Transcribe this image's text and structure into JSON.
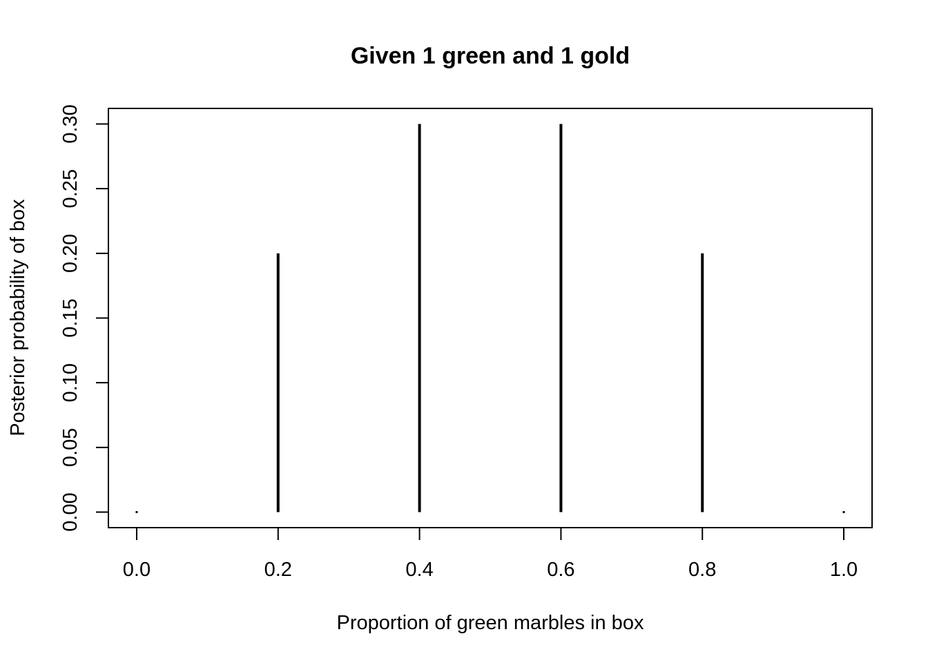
{
  "chart_data": {
    "type": "bar",
    "style": "spike",
    "title": "Given 1 green and 1 gold",
    "xlabel": "Proportion of green marbles in box",
    "ylabel": "Posterior probability of box",
    "x": [
      0.0,
      0.2,
      0.4,
      0.6,
      0.8,
      1.0
    ],
    "values": [
      0.0,
      0.2,
      0.3,
      0.3,
      0.2,
      0.0
    ],
    "xticks": [
      "0.0",
      "0.2",
      "0.4",
      "0.6",
      "0.8",
      "1.0"
    ],
    "yticks": [
      "0.00",
      "0.05",
      "0.10",
      "0.15",
      "0.20",
      "0.25",
      "0.30"
    ],
    "xlim": [
      -0.04,
      1.04
    ],
    "ylim": [
      -0.012,
      0.312
    ],
    "grid": false,
    "color": "#000000"
  }
}
